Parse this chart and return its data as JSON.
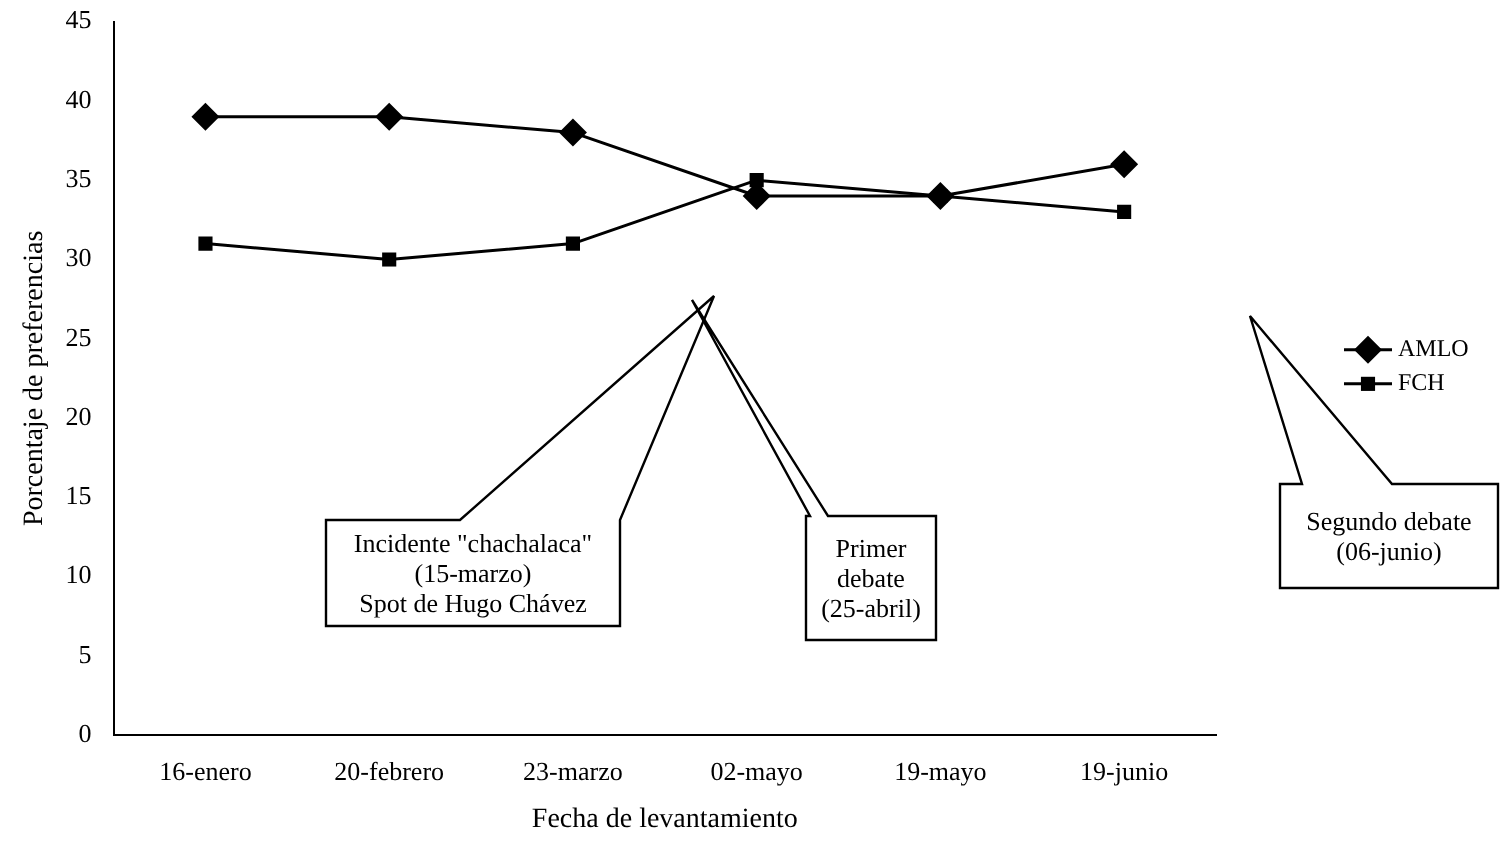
{
  "chart_data": {
    "type": "line",
    "xlabel": "Fecha de levantamiento",
    "ylabel": "Porcentaje de preferencias",
    "categories": [
      "16-enero",
      "20-febrero",
      "23-marzo",
      "02-mayo",
      "19-mayo",
      "19-junio"
    ],
    "series": [
      {
        "name": "AMLO",
        "color": "#000000",
        "marker": "diamond",
        "values": [
          39,
          39,
          38,
          34,
          34,
          36
        ]
      },
      {
        "name": "FCH",
        "color": "#000000",
        "marker": "square",
        "values": [
          31,
          30,
          31,
          35,
          34,
          33
        ]
      }
    ],
    "ylim": [
      0,
      45
    ],
    "yticks": [
      0,
      5,
      10,
      15,
      20,
      25,
      30,
      35,
      40,
      45
    ],
    "grid": false,
    "legend": "right",
    "line_style": "solid",
    "annotations": [
      "Incidente \"chachalaca\"\n(15-marzo)\nSpot de Hugo Chávez",
      "Primer\ndebate\n(25-abril)",
      "Segundo debate\n(06-junio)"
    ]
  }
}
